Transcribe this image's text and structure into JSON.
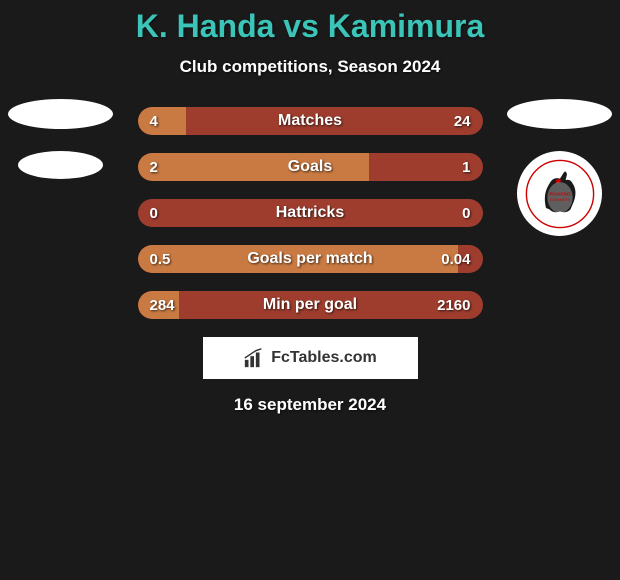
{
  "title": "K. Handa vs Kamimura",
  "subtitle": "Club competitions, Season 2024",
  "date": "16 september 2024",
  "fctables_label": "FcTables.com",
  "colors": {
    "background": "#1a1a1a",
    "title_color": "#3bc4b8",
    "bar_bg": "#9e3d2e",
    "bar_fill": "#c97a42",
    "text_white": "#ffffff"
  },
  "stats": [
    {
      "label": "Matches",
      "left_value": "4",
      "right_value": "24",
      "left_pct": 14,
      "right_pct": 86
    },
    {
      "label": "Goals",
      "left_value": "2",
      "right_value": "1",
      "left_pct": 67,
      "right_pct": 33
    },
    {
      "label": "Hattricks",
      "left_value": "0",
      "right_value": "0",
      "left_pct": 0,
      "right_pct": 0
    },
    {
      "label": "Goals per match",
      "left_value": "0.5",
      "right_value": "0.04",
      "left_pct": 93,
      "right_pct": 7
    },
    {
      "label": "Min per goal",
      "left_value": "284",
      "right_value": "2160",
      "left_pct": 12,
      "right_pct": 88
    }
  ],
  "team_right": {
    "name": "ROASSO KUMAMOTO"
  }
}
